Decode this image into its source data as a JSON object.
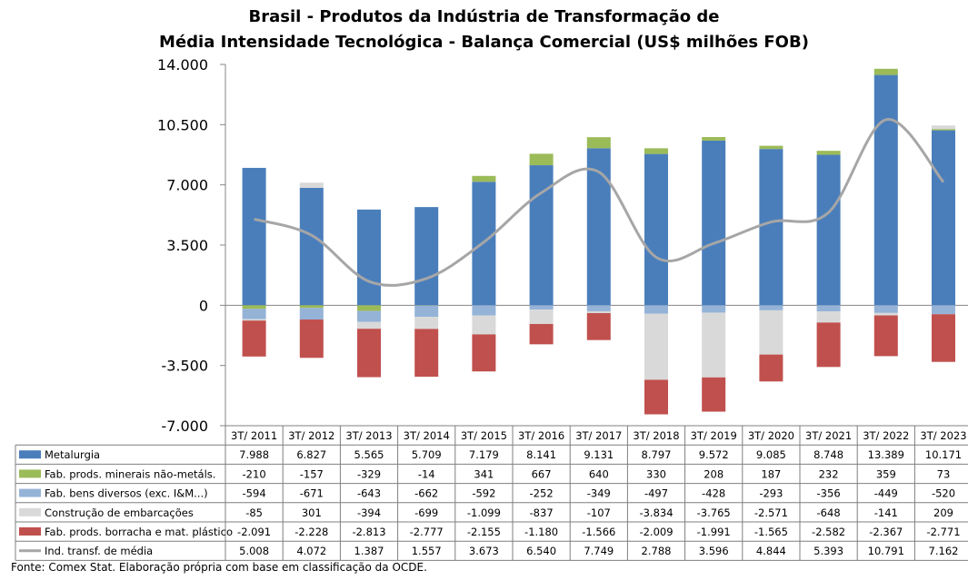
{
  "chart_data": {
    "type": "bar",
    "title": "Brasil - Produtos da Indústria de Transformação de",
    "subtitle": "Média Intensidade Tecnológica - Balança Comercial (US$ milhões FOB)",
    "categories": [
      "3T/ 2011",
      "3T/ 2012",
      "3T/ 2013",
      "3T/ 2014",
      "3T/ 2015",
      "3T/ 2016",
      "3T/ 2017",
      "3T/ 2018",
      "3T/ 2019",
      "3T/ 2020",
      "3T/ 2021",
      "3T/ 2022",
      "3T/ 2023"
    ],
    "ylim": [
      -7000,
      14000
    ],
    "yticks": [
      "14.000",
      "10.500",
      "7.000",
      "3.500",
      "0",
      "-3.500",
      "-7.000"
    ],
    "ytick_values": [
      14000,
      10500,
      7000,
      3500,
      0,
      -3500,
      -7000
    ],
    "grid": false,
    "stacked": true,
    "series": [
      {
        "name": "Metalurgia",
        "kind": "bar",
        "color": "#4a7ebb",
        "values": [
          7988,
          6827,
          5565,
          5709,
          7179,
          8141,
          9131,
          8797,
          9572,
          9085,
          8748,
          13389,
          10171
        ],
        "labels": [
          "7.988",
          "6.827",
          "5.565",
          "5.709",
          "7.179",
          "8.141",
          "9.131",
          "8.797",
          "9.572",
          "9.085",
          "8.748",
          "13.389",
          "10.171"
        ]
      },
      {
        "name": "Fab. prods. minerais não-metáls.",
        "kind": "bar",
        "color": "#9bbb59",
        "values": [
          -210,
          -157,
          -329,
          -14,
          341,
          667,
          640,
          330,
          208,
          187,
          232,
          359,
          73
        ],
        "labels": [
          "-210",
          "-157",
          "-329",
          "-14",
          "341",
          "667",
          "640",
          "330",
          "208",
          "187",
          "232",
          "359",
          "73"
        ]
      },
      {
        "name": "Fab. bens diversos (exc. I&M...)",
        "kind": "bar",
        "color": "#95b3d7",
        "values": [
          -594,
          -671,
          -643,
          -662,
          -592,
          -252,
          -349,
          -497,
          -428,
          -293,
          -356,
          -449,
          -520
        ],
        "labels": [
          "-594",
          "-671",
          "-643",
          "-662",
          "-592",
          "-252",
          "-349",
          "-497",
          "-428",
          "-293",
          "-356",
          "-449",
          "-520"
        ]
      },
      {
        "name": "Construção de embarcações",
        "kind": "bar",
        "color": "#d9d9d9",
        "values": [
          -85,
          301,
          -394,
          -699,
          -1099,
          -837,
          -107,
          -3834,
          -3765,
          -2571,
          -648,
          -141,
          209
        ],
        "labels": [
          "-85",
          "301",
          "-394",
          "-699",
          "-1.099",
          "-837",
          "-107",
          "-3.834",
          "-3.765",
          "-2.571",
          "-648",
          "-141",
          "209"
        ]
      },
      {
        "name": "Fab. prods. borracha e mat. plástico",
        "kind": "bar",
        "color": "#c0504d",
        "values": [
          -2091,
          -2228,
          -2813,
          -2777,
          -2155,
          -1180,
          -1566,
          -2009,
          -1991,
          -1565,
          -2582,
          -2367,
          -2771
        ],
        "labels": [
          "-2.091",
          "-2.228",
          "-2.813",
          "-2.777",
          "-2.155",
          "-1.180",
          "-1.566",
          "-2.009",
          "-1.991",
          "-1.565",
          "-2.582",
          "-2.367",
          "-2.771"
        ]
      },
      {
        "name": "Ind. transf. de média",
        "kind": "line",
        "color": "#a6a6a6",
        "values": [
          5008,
          4072,
          1387,
          1557,
          3673,
          6540,
          7749,
          2788,
          3596,
          4844,
          5393,
          10791,
          7162
        ],
        "labels": [
          "5.008",
          "4.072",
          "1.387",
          "1.557",
          "3.673",
          "6.540",
          "7.749",
          "2.788",
          "3.596",
          "4.844",
          "5.393",
          "10.791",
          "7.162"
        ]
      }
    ]
  },
  "source": "Fonte:  Comex Stat. Elaboração própria com base em classificação da OCDE."
}
